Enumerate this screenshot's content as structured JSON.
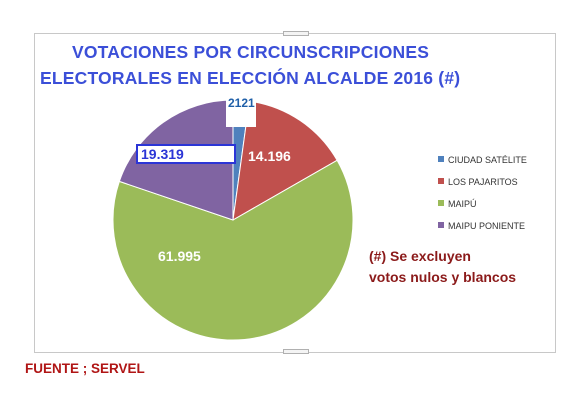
{
  "chart_data": {
    "type": "pie",
    "title_line1": "VOTACIONES POR CIRCUNSCRIPCIONES",
    "title_line2": "ELECTORALES EN ELECCIÓN ALCALDE 2016 (#)",
    "slices": [
      {
        "name": "CIUDAD SATÉLITE",
        "value": 2121,
        "label": "2121",
        "color": "#4f81bd"
      },
      {
        "name": "LOS PAJARITOS",
        "value": 14196,
        "label": "14.196",
        "color": "#c0504d"
      },
      {
        "name": "MAIPÚ",
        "value": 61995,
        "label": "61.995",
        "color": "#9bbb59"
      },
      {
        "name": "MAIPU PONIENTE",
        "value": 19319,
        "label": "19.319",
        "color": "#8064a2"
      }
    ],
    "legend_position": "right"
  },
  "note": {
    "line1": "(#) Se excluyen",
    "line2": "votos nulos y blancos"
  },
  "source": "FUENTE ; SERVEL"
}
